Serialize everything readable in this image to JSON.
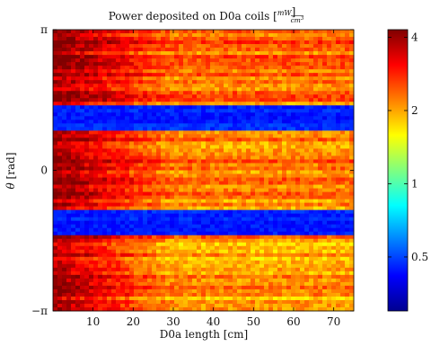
{
  "chart_data": {
    "type": "heatmap",
    "title": {
      "prefix": "Power deposited on D0a coils ",
      "unit_numerator": "mW",
      "unit_denominator": "cm",
      "unit_denominator_exponent": "3"
    },
    "xlabel": "D0a length [cm]",
    "ylabel": {
      "symbol": "θ",
      "unit": "[rad]"
    },
    "xlim": [
      0,
      75
    ],
    "ylim": [
      -3.14159,
      3.14159
    ],
    "x_ticks": [
      {
        "value": 10,
        "label": "10"
      },
      {
        "value": 20,
        "label": "20"
      },
      {
        "value": 30,
        "label": "30"
      },
      {
        "value": 40,
        "label": "40"
      },
      {
        "value": 50,
        "label": "50"
      },
      {
        "value": 60,
        "label": "60"
      },
      {
        "value": 70,
        "label": "70"
      }
    ],
    "y_ticks": [
      {
        "value": 3.14159,
        "label": "π"
      },
      {
        "value": 0,
        "label": "0"
      },
      {
        "value": -3.14159,
        "label": "−π"
      }
    ],
    "colorbar": {
      "scale": "log",
      "range": [
        0.3,
        4.3
      ],
      "colormap": "jet",
      "ticks": [
        {
          "value": 0.5,
          "label": "0.5"
        },
        {
          "value": 1,
          "label": "1"
        },
        {
          "value": 2,
          "label": "2"
        },
        {
          "value": 4,
          "label": "4"
        }
      ]
    },
    "theta_bands": [
      {
        "theta_min": 1.48,
        "theta_max": 3.14159,
        "level": "high",
        "power_start": 4.0,
        "power_end": 2.3
      },
      {
        "theta_min": 0.92,
        "theta_max": 1.48,
        "level": "low",
        "power_start": 0.45,
        "power_end": 0.45
      },
      {
        "theta_min": -0.92,
        "theta_max": 0.92,
        "level": "high",
        "power_start": 4.0,
        "power_end": 2.2
      },
      {
        "theta_min": -1.48,
        "theta_max": -0.92,
        "level": "low",
        "power_start": 0.45,
        "power_end": 0.45
      },
      {
        "theta_min": -3.14159,
        "theta_max": -1.48,
        "level": "high",
        "power_start": 4.0,
        "power_end": 2.1
      }
    ]
  }
}
